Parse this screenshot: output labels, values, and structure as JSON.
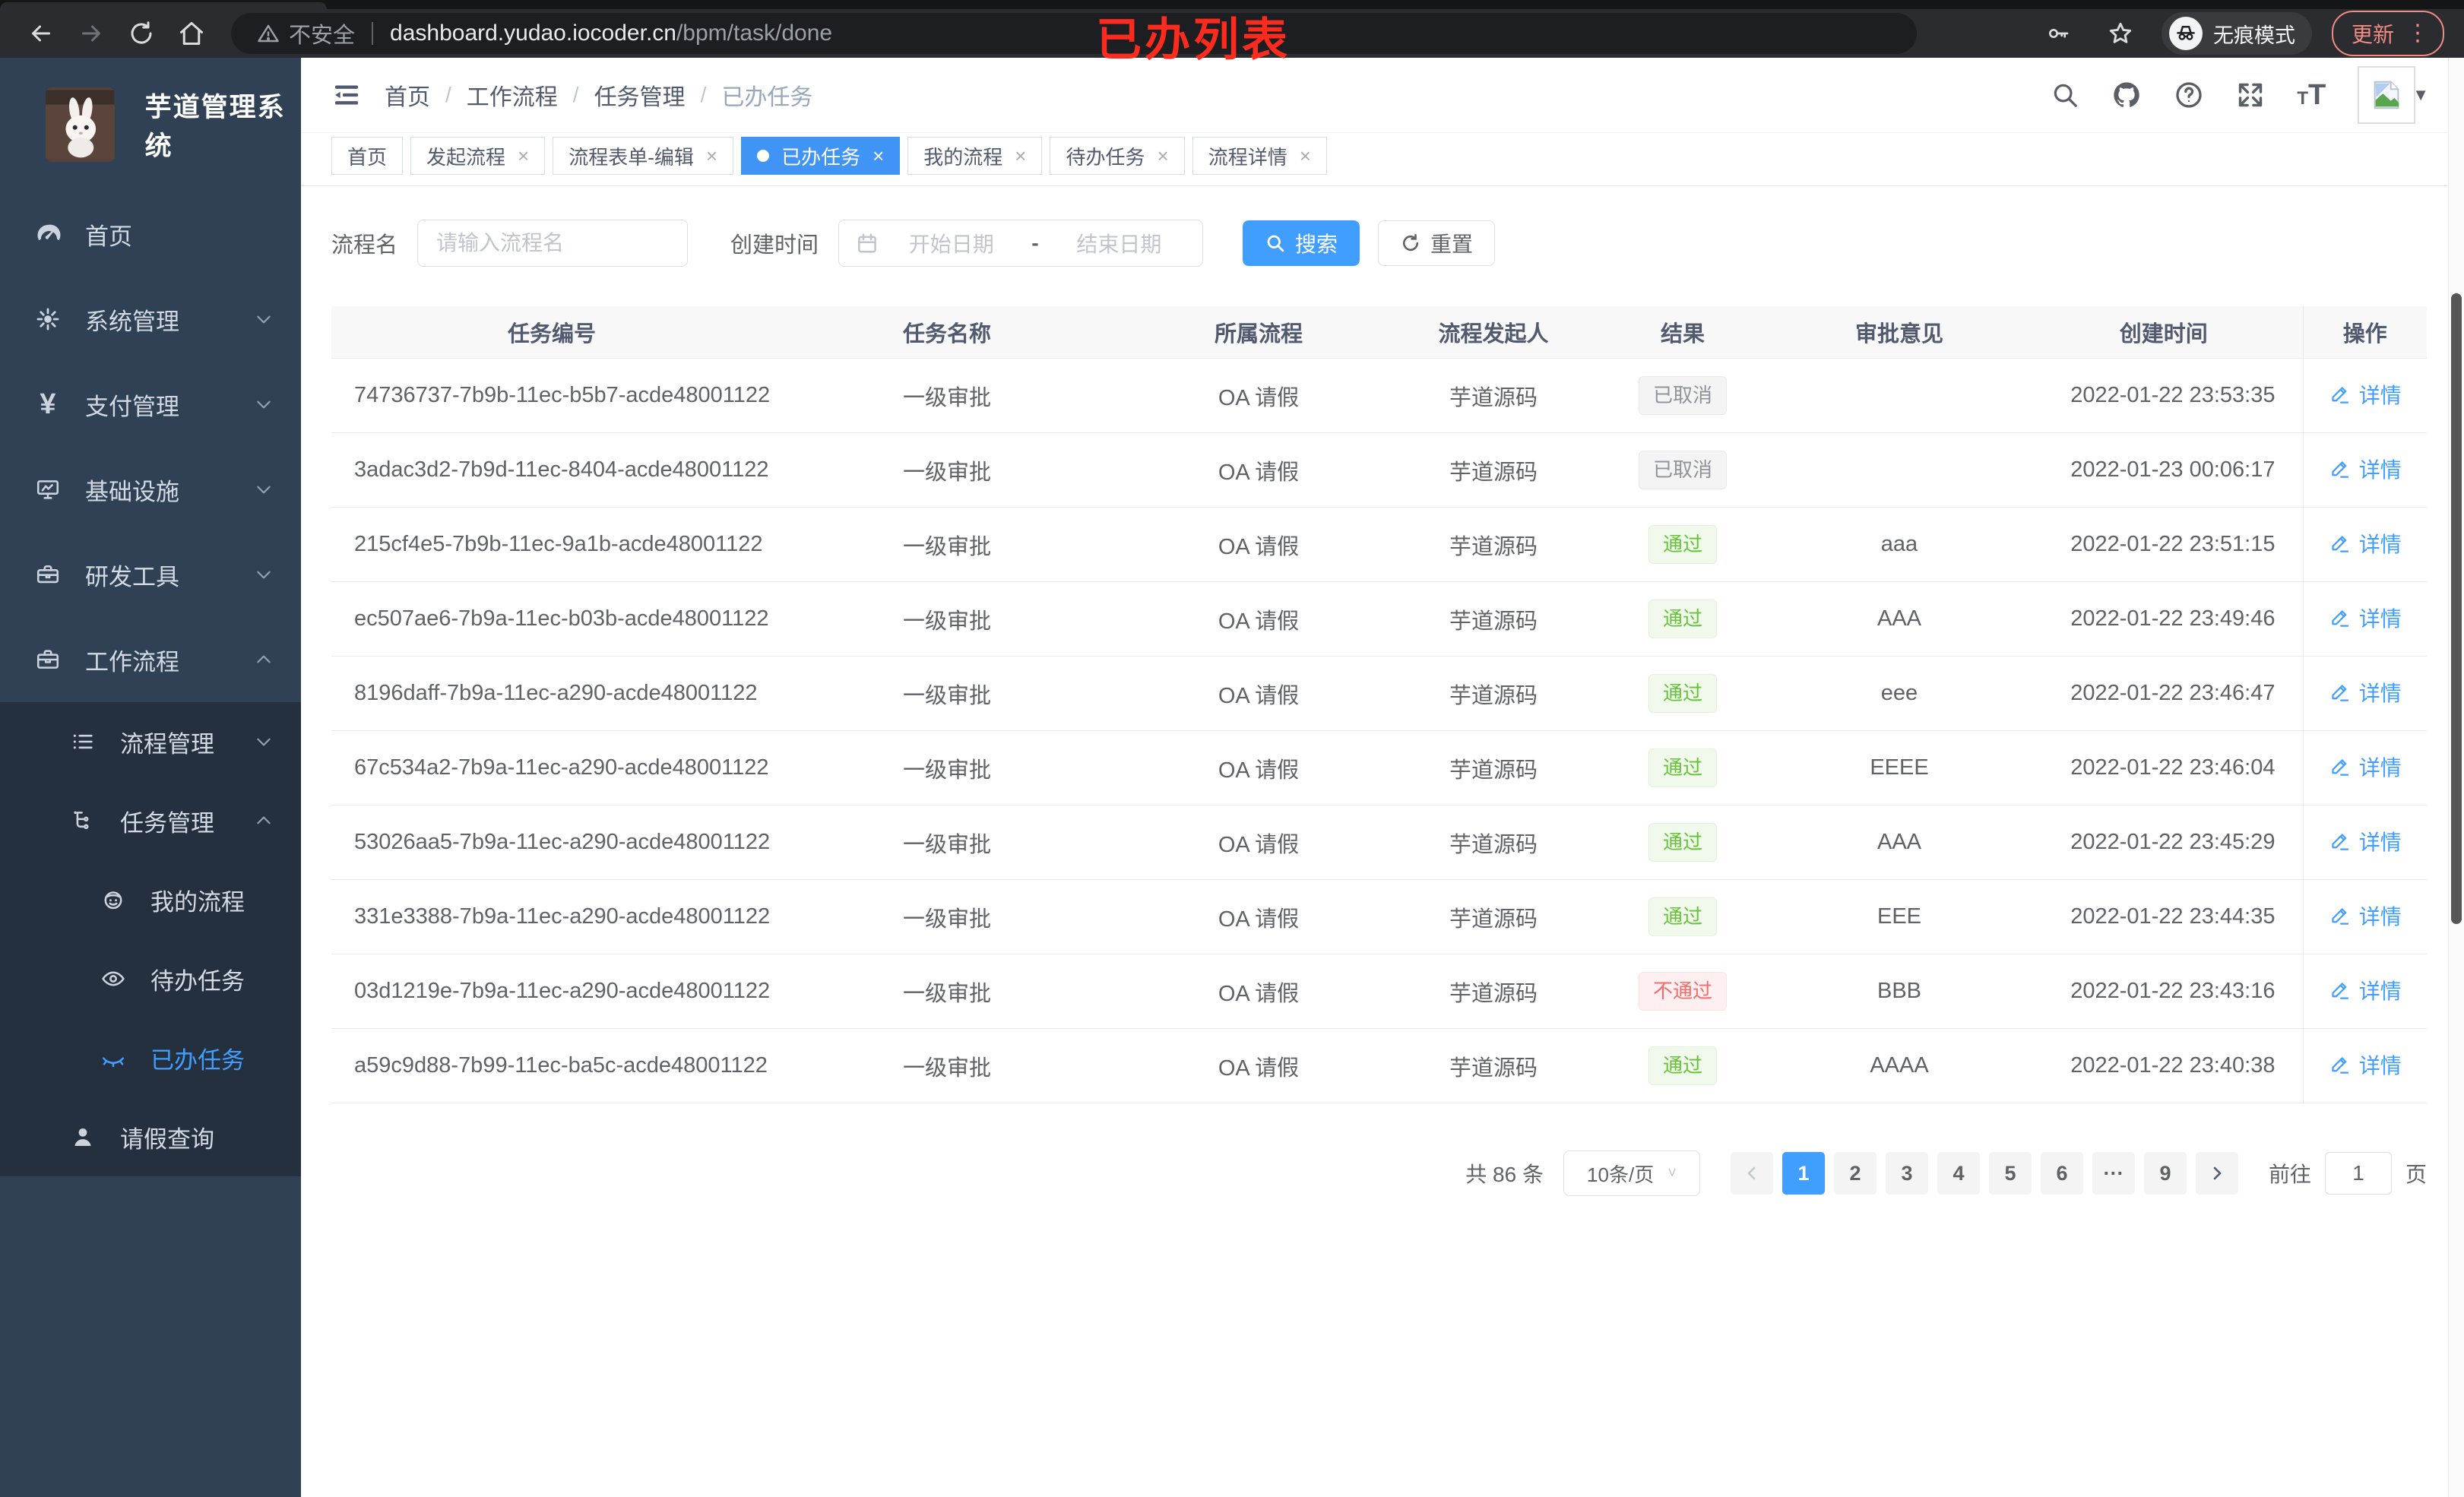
{
  "browser": {
    "secure_label": "不安全",
    "url_host": "dashboard.yudao.iocoder.cn",
    "url_path": "/bpm/task/done",
    "incognito_label": "无痕模式",
    "update_label": "更新"
  },
  "annotation": {
    "title": "已办列表"
  },
  "sidebar": {
    "title": "芋道管理系统",
    "top_items": [
      {
        "label": "首页",
        "icon": "dashboard-icon",
        "chevron": ""
      },
      {
        "label": "系统管理",
        "icon": "gear-icon",
        "chevron": "down"
      },
      {
        "label": "支付管理",
        "icon": "yen-icon",
        "chevron": "down"
      },
      {
        "label": "基础设施",
        "icon": "monitor-icon",
        "chevron": "down"
      },
      {
        "label": "研发工具",
        "icon": "toolbox-icon",
        "chevron": "down"
      },
      {
        "label": "工作流程",
        "icon": "briefcase-icon",
        "chevron": "up"
      }
    ],
    "submenu_items": [
      {
        "label": "流程管理",
        "icon": "flow-list-icon",
        "chevron": "down",
        "level": 1,
        "active": false
      },
      {
        "label": "任务管理",
        "icon": "task-tree-icon",
        "chevron": "up",
        "level": 1,
        "active": false
      },
      {
        "label": "我的流程",
        "icon": "robot-icon",
        "chevron": "",
        "level": 2,
        "active": false
      },
      {
        "label": "待办任务",
        "icon": "eye-icon",
        "chevron": "",
        "level": 2,
        "active": false
      },
      {
        "label": "已办任务",
        "icon": "eye-closed-icon",
        "chevron": "",
        "level": 2,
        "active": true
      },
      {
        "label": "请假查询",
        "icon": "user-icon",
        "chevron": "",
        "level": 1,
        "active": false
      }
    ]
  },
  "header": {
    "breadcrumb": [
      "首页",
      "工作流程",
      "任务管理",
      "已办任务"
    ]
  },
  "tabs": [
    {
      "label": "首页",
      "closable": false,
      "active": false
    },
    {
      "label": "发起流程",
      "closable": true,
      "active": false
    },
    {
      "label": "流程表单-编辑",
      "closable": true,
      "active": false
    },
    {
      "label": "已办任务",
      "closable": true,
      "active": true
    },
    {
      "label": "我的流程",
      "closable": true,
      "active": false
    },
    {
      "label": "待办任务",
      "closable": true,
      "active": false
    },
    {
      "label": "流程详情",
      "closable": true,
      "active": false
    }
  ],
  "filters": {
    "name_label": "流程名",
    "name_placeholder": "请输入流程名",
    "time_label": "创建时间",
    "start_placeholder": "开始日期",
    "range_separator": "-",
    "end_placeholder": "结束日期",
    "search_label": "搜索",
    "reset_label": "重置"
  },
  "table": {
    "columns": [
      "任务编号",
      "任务名称",
      "所属流程",
      "流程发起人",
      "结果",
      "审批意见",
      "创建时间",
      "操作"
    ],
    "detail_label": "详情",
    "rows": [
      {
        "id": "74736737-7b9b-11ec-b5b7-acde48001122",
        "name": "一级审批",
        "process": "OA 请假",
        "starter": "芋道源码",
        "result": "已取消",
        "result_type": "info",
        "opinion": "",
        "time": "2022-01-22 23:53:35"
      },
      {
        "id": "3adac3d2-7b9d-11ec-8404-acde48001122",
        "name": "一级审批",
        "process": "OA 请假",
        "starter": "芋道源码",
        "result": "已取消",
        "result_type": "info",
        "opinion": "",
        "time": "2022-01-23 00:06:17"
      },
      {
        "id": "215cf4e5-7b9b-11ec-9a1b-acde48001122",
        "name": "一级审批",
        "process": "OA 请假",
        "starter": "芋道源码",
        "result": "通过",
        "result_type": "success",
        "opinion": "aaa",
        "time": "2022-01-22 23:51:15"
      },
      {
        "id": "ec507ae6-7b9a-11ec-b03b-acde48001122",
        "name": "一级审批",
        "process": "OA 请假",
        "starter": "芋道源码",
        "result": "通过",
        "result_type": "success",
        "opinion": "AAA",
        "time": "2022-01-22 23:49:46"
      },
      {
        "id": "8196daff-7b9a-11ec-a290-acde48001122",
        "name": "一级审批",
        "process": "OA 请假",
        "starter": "芋道源码",
        "result": "通过",
        "result_type": "success",
        "opinion": "eee",
        "time": "2022-01-22 23:46:47"
      },
      {
        "id": "67c534a2-7b9a-11ec-a290-acde48001122",
        "name": "一级审批",
        "process": "OA 请假",
        "starter": "芋道源码",
        "result": "通过",
        "result_type": "success",
        "opinion": "EEEE",
        "time": "2022-01-22 23:46:04"
      },
      {
        "id": "53026aa5-7b9a-11ec-a290-acde48001122",
        "name": "一级审批",
        "process": "OA 请假",
        "starter": "芋道源码",
        "result": "通过",
        "result_type": "success",
        "opinion": "AAA",
        "time": "2022-01-22 23:45:29"
      },
      {
        "id": "331e3388-7b9a-11ec-a290-acde48001122",
        "name": "一级审批",
        "process": "OA 请假",
        "starter": "芋道源码",
        "result": "通过",
        "result_type": "success",
        "opinion": "EEE",
        "time": "2022-01-22 23:44:35"
      },
      {
        "id": "03d1219e-7b9a-11ec-a290-acde48001122",
        "name": "一级审批",
        "process": "OA 请假",
        "starter": "芋道源码",
        "result": "不通过",
        "result_type": "danger",
        "opinion": "BBB",
        "time": "2022-01-22 23:43:16"
      },
      {
        "id": "a59c9d88-7b99-11ec-ba5c-acde48001122",
        "name": "一级审批",
        "process": "OA 请假",
        "starter": "芋道源码",
        "result": "通过",
        "result_type": "success",
        "opinion": "AAAA",
        "time": "2022-01-22 23:40:38"
      }
    ]
  },
  "pagination": {
    "total_label": "共 86 条",
    "page_size": "10条/页",
    "pages": [
      "1",
      "2",
      "3",
      "4",
      "5",
      "6",
      "···",
      "9"
    ],
    "active_page": "1",
    "jumper_prefix": "前往",
    "jumper_value": "1",
    "jumper_suffix": "页"
  },
  "colors": {
    "accent": "#409eff",
    "success": "#67c23a",
    "danger": "#f56c6c",
    "info": "#909399",
    "sidebar_bg": "#304156",
    "submenu_bg": "#25303f",
    "annotation_red": "#fd2b1e"
  }
}
